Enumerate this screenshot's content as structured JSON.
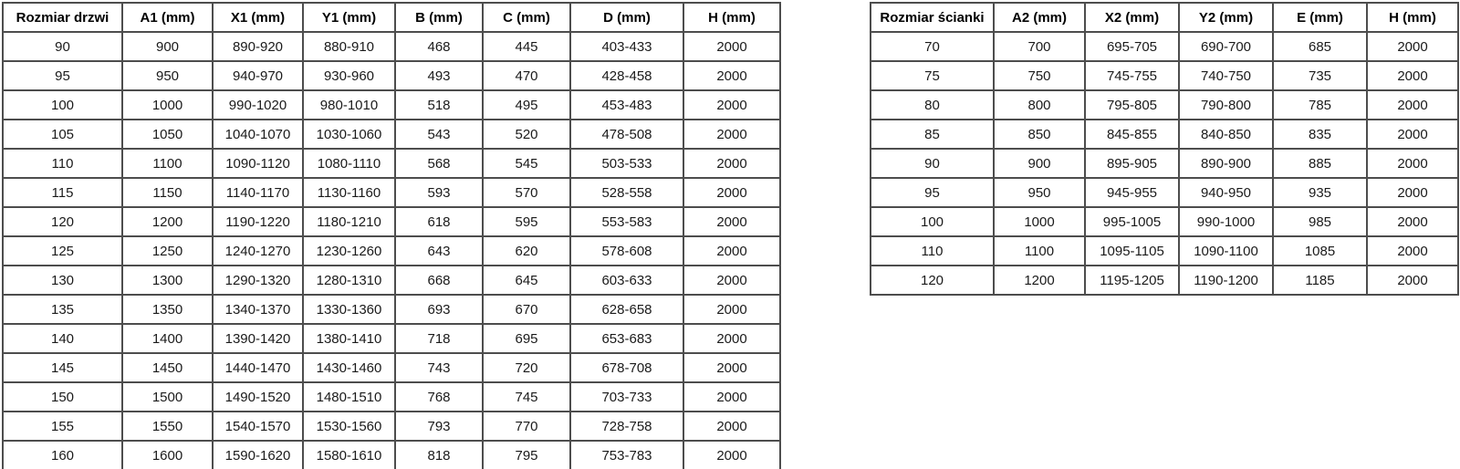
{
  "page": {
    "background": "#ffffff",
    "border_color": "#4d4d4d",
    "text_color": "#1a1a1a"
  },
  "tables": [
    {
      "id": "door-sizes",
      "headers": [
        "Rozmiar drzwi",
        "A1 (mm)",
        "X1 (mm)",
        "Y1 (mm)",
        "B (mm)",
        "C (mm)",
        "D (mm)",
        "H (mm)"
      ],
      "rows": [
        [
          "90",
          "900",
          "890-920",
          "880-910",
          "468",
          "445",
          "403-433",
          "2000"
        ],
        [
          "95",
          "950",
          "940-970",
          "930-960",
          "493",
          "470",
          "428-458",
          "2000"
        ],
        [
          "100",
          "1000",
          "990-1020",
          "980-1010",
          "518",
          "495",
          "453-483",
          "2000"
        ],
        [
          "105",
          "1050",
          "1040-1070",
          "1030-1060",
          "543",
          "520",
          "478-508",
          "2000"
        ],
        [
          "110",
          "1100",
          "1090-1120",
          "1080-1110",
          "568",
          "545",
          "503-533",
          "2000"
        ],
        [
          "115",
          "1150",
          "1140-1170",
          "1130-1160",
          "593",
          "570",
          "528-558",
          "2000"
        ],
        [
          "120",
          "1200",
          "1190-1220",
          "1180-1210",
          "618",
          "595",
          "553-583",
          "2000"
        ],
        [
          "125",
          "1250",
          "1240-1270",
          "1230-1260",
          "643",
          "620",
          "578-608",
          "2000"
        ],
        [
          "130",
          "1300",
          "1290-1320",
          "1280-1310",
          "668",
          "645",
          "603-633",
          "2000"
        ],
        [
          "135",
          "1350",
          "1340-1370",
          "1330-1360",
          "693",
          "670",
          "628-658",
          "2000"
        ],
        [
          "140",
          "1400",
          "1390-1420",
          "1380-1410",
          "718",
          "695",
          "653-683",
          "2000"
        ],
        [
          "145",
          "1450",
          "1440-1470",
          "1430-1460",
          "743",
          "720",
          "678-708",
          "2000"
        ],
        [
          "150",
          "1500",
          "1490-1520",
          "1480-1510",
          "768",
          "745",
          "703-733",
          "2000"
        ],
        [
          "155",
          "1550",
          "1540-1570",
          "1530-1560",
          "793",
          "770",
          "728-758",
          "2000"
        ],
        [
          "160",
          "1600",
          "1590-1620",
          "1580-1610",
          "818",
          "795",
          "753-783",
          "2000"
        ]
      ]
    },
    {
      "id": "wall-sizes",
      "headers": [
        "Rozmiar ścianki",
        "A2 (mm)",
        "X2 (mm)",
        "Y2 (mm)",
        "E (mm)",
        "H (mm)"
      ],
      "rows": [
        [
          "70",
          "700",
          "695-705",
          "690-700",
          "685",
          "2000"
        ],
        [
          "75",
          "750",
          "745-755",
          "740-750",
          "735",
          "2000"
        ],
        [
          "80",
          "800",
          "795-805",
          "790-800",
          "785",
          "2000"
        ],
        [
          "85",
          "850",
          "845-855",
          "840-850",
          "835",
          "2000"
        ],
        [
          "90",
          "900",
          "895-905",
          "890-900",
          "885",
          "2000"
        ],
        [
          "95",
          "950",
          "945-955",
          "940-950",
          "935",
          "2000"
        ],
        [
          "100",
          "1000",
          "995-1005",
          "990-1000",
          "985",
          "2000"
        ],
        [
          "110",
          "1100",
          "1095-1105",
          "1090-1100",
          "1085",
          "2000"
        ],
        [
          "120",
          "1200",
          "1195-1205",
          "1190-1200",
          "1185",
          "2000"
        ]
      ]
    }
  ]
}
